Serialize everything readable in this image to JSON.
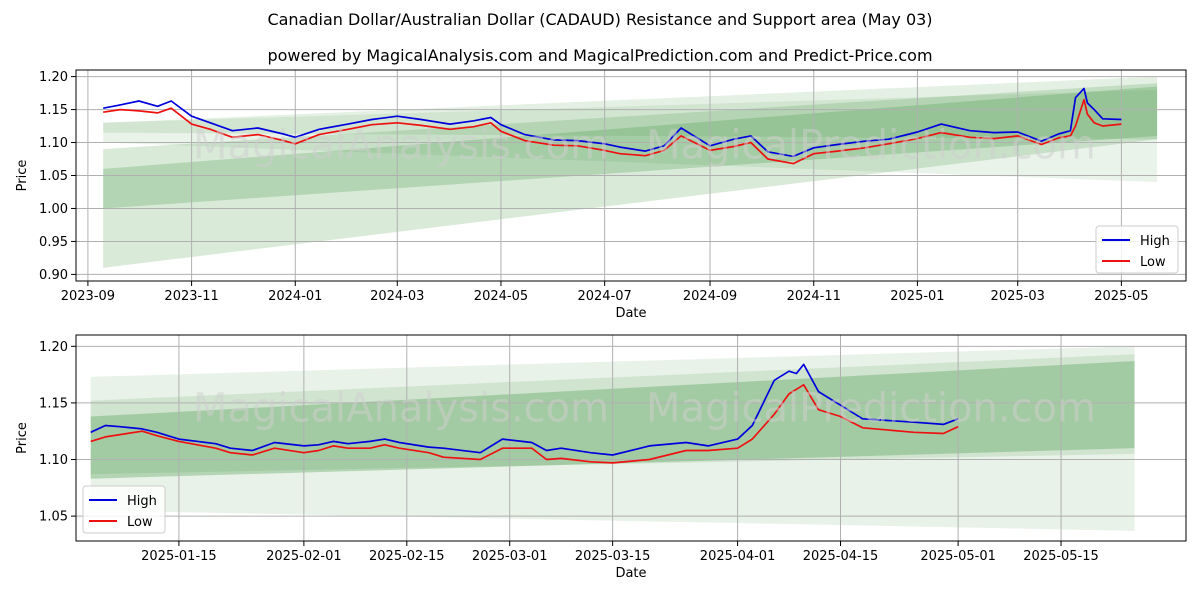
{
  "page": {
    "title": "Canadian Dollar/Australian Dollar (CADAUD) Resistance and Support area (May 03)",
    "subtitle": "powered by MagicalAnalysis.com and MagicalPrediction.com and Predict-Price.com"
  },
  "colors": {
    "high": "#0000dd",
    "low": "#ee1111",
    "band": "#2e8b2e",
    "grid": "#b0b0b0"
  },
  "chart_data": [
    {
      "type": "line",
      "xlabel": "Date",
      "ylabel": "Price",
      "ylim": [
        0.89,
        1.21
      ],
      "xlim": [
        "2023-08-25",
        "2025-06-08"
      ],
      "x_ticks": [
        "2023-09",
        "2023-11",
        "2024-01",
        "2024-03",
        "2024-05",
        "2024-07",
        "2024-09",
        "2024-11",
        "2025-01",
        "2025-03",
        "2025-05"
      ],
      "x_tick_dates": [
        "2023-09-01",
        "2023-11-01",
        "2024-01-01",
        "2024-03-01",
        "2024-05-01",
        "2024-07-01",
        "2024-09-01",
        "2024-11-01",
        "2025-01-01",
        "2025-03-01",
        "2025-05-01"
      ],
      "y_ticks": [
        "0.90",
        "0.95",
        "1.00",
        "1.05",
        "1.10",
        "1.15",
        "1.20"
      ],
      "grid": true,
      "legend_position": "bottom-right",
      "series": [
        {
          "name": "High",
          "x": [
            "2023-09-10",
            "2023-09-20",
            "2023-10-01",
            "2023-10-12",
            "2023-10-20",
            "2023-11-01",
            "2023-11-12",
            "2023-11-25",
            "2023-12-10",
            "2023-12-25",
            "2024-01-01",
            "2024-01-15",
            "2024-02-01",
            "2024-02-15",
            "2024-03-01",
            "2024-03-15",
            "2024-04-01",
            "2024-04-15",
            "2024-04-25",
            "2024-05-01",
            "2024-05-15",
            "2024-06-01",
            "2024-06-15",
            "2024-07-01",
            "2024-07-10",
            "2024-07-25",
            "2024-08-05",
            "2024-08-15",
            "2024-09-01",
            "2024-09-15",
            "2024-09-25",
            "2024-10-05",
            "2024-10-20",
            "2024-11-01",
            "2024-11-15",
            "2024-12-01",
            "2024-12-15",
            "2025-01-01",
            "2025-01-15",
            "2025-02-01",
            "2025-02-15",
            "2025-03-01",
            "2025-03-15",
            "2025-03-25",
            "2025-04-01",
            "2025-04-04",
            "2025-04-09",
            "2025-04-11",
            "2025-04-15",
            "2025-04-20",
            "2025-05-01"
          ],
          "values": [
            1.152,
            1.157,
            1.163,
            1.155,
            1.163,
            1.14,
            1.13,
            1.118,
            1.122,
            1.113,
            1.108,
            1.12,
            1.128,
            1.135,
            1.14,
            1.135,
            1.128,
            1.133,
            1.138,
            1.127,
            1.112,
            1.104,
            1.103,
            1.098,
            1.093,
            1.087,
            1.095,
            1.122,
            1.095,
            1.105,
            1.11,
            1.086,
            1.079,
            1.092,
            1.097,
            1.102,
            1.105,
            1.116,
            1.128,
            1.118,
            1.115,
            1.116,
            1.102,
            1.113,
            1.118,
            1.168,
            1.182,
            1.16,
            1.15,
            1.136,
            1.135
          ]
        },
        {
          "name": "Low",
          "x": [
            "2023-09-10",
            "2023-09-20",
            "2023-10-01",
            "2023-10-12",
            "2023-10-20",
            "2023-11-01",
            "2023-11-12",
            "2023-11-25",
            "2023-12-10",
            "2023-12-25",
            "2024-01-01",
            "2024-01-15",
            "2024-02-01",
            "2024-02-15",
            "2024-03-01",
            "2024-03-15",
            "2024-04-01",
            "2024-04-15",
            "2024-04-25",
            "2024-05-01",
            "2024-05-15",
            "2024-06-01",
            "2024-06-15",
            "2024-07-01",
            "2024-07-10",
            "2024-07-25",
            "2024-08-05",
            "2024-08-15",
            "2024-09-01",
            "2024-09-15",
            "2024-09-25",
            "2024-10-05",
            "2024-10-20",
            "2024-11-01",
            "2024-11-15",
            "2024-12-01",
            "2024-12-15",
            "2025-01-01",
            "2025-01-15",
            "2025-02-01",
            "2025-02-15",
            "2025-03-01",
            "2025-03-15",
            "2025-03-25",
            "2025-04-01",
            "2025-04-04",
            "2025-04-09",
            "2025-04-11",
            "2025-04-15",
            "2025-04-20",
            "2025-05-01"
          ],
          "values": [
            1.146,
            1.15,
            1.148,
            1.145,
            1.152,
            1.128,
            1.12,
            1.108,
            1.112,
            1.103,
            1.098,
            1.112,
            1.12,
            1.127,
            1.13,
            1.126,
            1.12,
            1.124,
            1.13,
            1.117,
            1.103,
            1.096,
            1.095,
            1.088,
            1.083,
            1.08,
            1.088,
            1.11,
            1.088,
            1.094,
            1.1,
            1.075,
            1.068,
            1.083,
            1.087,
            1.092,
            1.098,
            1.106,
            1.115,
            1.108,
            1.106,
            1.11,
            1.097,
            1.107,
            1.11,
            1.125,
            1.165,
            1.143,
            1.13,
            1.125,
            1.128
          ]
        }
      ],
      "bands": [
        {
          "x": [
            "2023-09-10",
            "2025-05-22"
          ],
          "upper": [
            1.13,
            1.2
          ],
          "lower": [
            1.115,
            1.105
          ],
          "opacity": 0.13
        },
        {
          "x": [
            "2023-09-10",
            "2025-05-22"
          ],
          "upper": [
            1.09,
            1.19
          ],
          "lower": [
            0.91,
            1.105
          ],
          "opacity": 0.18
        },
        {
          "x": [
            "2023-09-10",
            "2025-05-22"
          ],
          "upper": [
            1.06,
            1.185
          ],
          "lower": [
            1.0,
            1.11
          ],
          "opacity": 0.22
        },
        {
          "x": [
            "2023-09-10",
            "2025-05-22"
          ],
          "upper": [
            1.13,
            1.18
          ],
          "lower": [
            1.1,
            1.04
          ],
          "opacity": 0.1
        }
      ]
    },
    {
      "type": "line",
      "xlabel": "Date",
      "ylabel": "Price",
      "ylim": [
        1.028,
        1.21
      ],
      "xlim": [
        "2025-01-01",
        "2025-06-01"
      ],
      "x_ticks": [
        "2025-01-15",
        "2025-02-01",
        "2025-02-15",
        "2025-03-01",
        "2025-03-15",
        "2025-04-01",
        "2025-04-15",
        "2025-05-01",
        "2025-05-15"
      ],
      "y_ticks": [
        "1.05",
        "1.10",
        "1.15",
        "1.20"
      ],
      "grid": true,
      "legend_position": "bottom-left",
      "series": [
        {
          "name": "High",
          "x": [
            "2025-01-03",
            "2025-01-05",
            "2025-01-07",
            "2025-01-10",
            "2025-01-12",
            "2025-01-15",
            "2025-01-20",
            "2025-01-22",
            "2025-01-25",
            "2025-01-28",
            "2025-02-01",
            "2025-02-03",
            "2025-02-05",
            "2025-02-07",
            "2025-02-10",
            "2025-02-12",
            "2025-02-14",
            "2025-02-18",
            "2025-02-20",
            "2025-02-25",
            "2025-02-28",
            "2025-03-04",
            "2025-03-06",
            "2025-03-08",
            "2025-03-12",
            "2025-03-15",
            "2025-03-20",
            "2025-03-25",
            "2025-03-28",
            "2025-04-01",
            "2025-04-03",
            "2025-04-06",
            "2025-04-08",
            "2025-04-09",
            "2025-04-10",
            "2025-04-12",
            "2025-04-15",
            "2025-04-18",
            "2025-04-25",
            "2025-04-29",
            "2025-05-01"
          ],
          "values": [
            1.124,
            1.13,
            1.129,
            1.127,
            1.124,
            1.118,
            1.114,
            1.11,
            1.108,
            1.115,
            1.112,
            1.113,
            1.116,
            1.114,
            1.116,
            1.118,
            1.115,
            1.111,
            1.11,
            1.106,
            1.118,
            1.115,
            1.108,
            1.11,
            1.106,
            1.104,
            1.112,
            1.115,
            1.112,
            1.118,
            1.13,
            1.17,
            1.178,
            1.176,
            1.184,
            1.16,
            1.148,
            1.136,
            1.133,
            1.131,
            1.136
          ]
        },
        {
          "name": "Low",
          "x": [
            "2025-01-03",
            "2025-01-05",
            "2025-01-07",
            "2025-01-10",
            "2025-01-12",
            "2025-01-15",
            "2025-01-20",
            "2025-01-22",
            "2025-01-25",
            "2025-01-28",
            "2025-02-01",
            "2025-02-03",
            "2025-02-05",
            "2025-02-07",
            "2025-02-10",
            "2025-02-12",
            "2025-02-14",
            "2025-02-18",
            "2025-02-20",
            "2025-02-25",
            "2025-02-28",
            "2025-03-04",
            "2025-03-06",
            "2025-03-08",
            "2025-03-12",
            "2025-03-15",
            "2025-03-20",
            "2025-03-25",
            "2025-03-28",
            "2025-04-01",
            "2025-04-03",
            "2025-04-06",
            "2025-04-08",
            "2025-04-09",
            "2025-04-10",
            "2025-04-12",
            "2025-04-15",
            "2025-04-18",
            "2025-04-25",
            "2025-04-29",
            "2025-05-01"
          ],
          "values": [
            1.116,
            1.12,
            1.122,
            1.125,
            1.121,
            1.116,
            1.11,
            1.106,
            1.104,
            1.11,
            1.106,
            1.108,
            1.112,
            1.11,
            1.11,
            1.113,
            1.11,
            1.106,
            1.102,
            1.1,
            1.11,
            1.11,
            1.1,
            1.101,
            1.098,
            1.097,
            1.1,
            1.108,
            1.108,
            1.11,
            1.118,
            1.14,
            1.158,
            1.162,
            1.166,
            1.144,
            1.138,
            1.128,
            1.124,
            1.123,
            1.129
          ]
        }
      ],
      "bands": [
        {
          "x": [
            "2025-01-03",
            "2025-05-25"
          ],
          "upper": [
            1.173,
            1.2
          ],
          "lower": [
            1.055,
            1.037
          ],
          "opacity": 0.11
        },
        {
          "x": [
            "2025-01-03",
            "2025-05-25"
          ],
          "upper": [
            1.152,
            1.193
          ],
          "lower": [
            1.087,
            1.105
          ],
          "opacity": 0.13
        },
        {
          "x": [
            "2025-01-03",
            "2025-05-25"
          ],
          "upper": [
            1.138,
            1.187
          ],
          "lower": [
            1.083,
            1.11
          ],
          "opacity": 0.28
        }
      ]
    }
  ],
  "watermark": {
    "line1": "MagicalAnalysis.com",
    "line2": "MagicalPrediction.com"
  }
}
